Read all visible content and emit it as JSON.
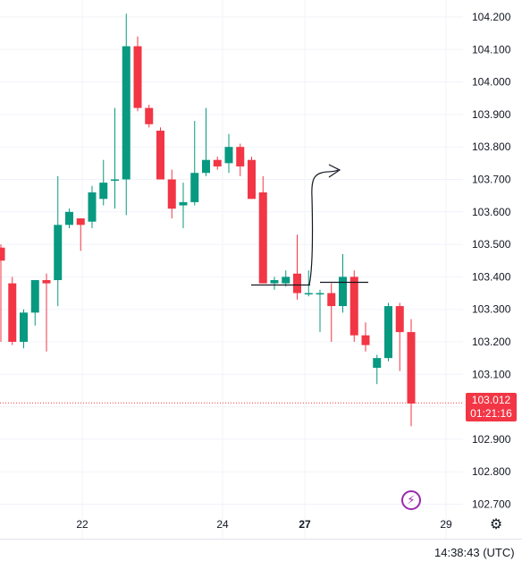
{
  "chart_data": {
    "type": "candlestick",
    "y_ticks": [
      "104.200",
      "104.100",
      "104.000",
      "103.900",
      "103.800",
      "103.700",
      "103.600",
      "103.500",
      "103.400",
      "103.300",
      "103.200",
      "103.100",
      "103.000",
      "102.900",
      "102.800",
      "102.700"
    ],
    "ylim": [
      102.68,
      104.24
    ],
    "x_ticks": [
      {
        "label": "22",
        "bold": false
      },
      {
        "label": "24",
        "bold": false
      },
      {
        "label": "27",
        "bold": true
      },
      {
        "label": "29",
        "bold": false
      }
    ],
    "grid": true,
    "candles": [
      {
        "o": 103.49,
        "h": 103.5,
        "l": 103.2,
        "c": 103.45
      },
      {
        "o": 103.38,
        "h": 103.4,
        "l": 103.19,
        "c": 103.2
      },
      {
        "o": 103.2,
        "h": 103.3,
        "l": 103.18,
        "c": 103.29
      },
      {
        "o": 103.29,
        "h": 103.39,
        "l": 103.25,
        "c": 103.39
      },
      {
        "o": 103.39,
        "h": 103.41,
        "l": 103.17,
        "c": 103.38
      },
      {
        "o": 103.39,
        "h": 103.71,
        "l": 103.31,
        "c": 103.56
      },
      {
        "o": 103.56,
        "h": 103.61,
        "l": 103.55,
        "c": 103.6
      },
      {
        "o": 103.58,
        "h": 103.58,
        "l": 103.48,
        "c": 103.56
      },
      {
        "o": 103.57,
        "h": 103.68,
        "l": 103.55,
        "c": 103.66
      },
      {
        "o": 103.64,
        "h": 103.76,
        "l": 103.62,
        "c": 103.69
      },
      {
        "o": 103.7,
        "h": 103.92,
        "l": 103.61,
        "c": 103.7
      },
      {
        "o": 103.7,
        "h": 104.21,
        "l": 103.59,
        "c": 104.11
      },
      {
        "o": 104.11,
        "h": 104.14,
        "l": 103.91,
        "c": 103.92
      },
      {
        "o": 103.92,
        "h": 103.93,
        "l": 103.86,
        "c": 103.87
      },
      {
        "o": 103.85,
        "h": 103.86,
        "l": 103.71,
        "c": 103.7
      },
      {
        "o": 103.7,
        "h": 103.73,
        "l": 103.58,
        "c": 103.61
      },
      {
        "o": 103.62,
        "h": 103.69,
        "l": 103.55,
        "c": 103.63
      },
      {
        "o": 103.63,
        "h": 103.88,
        "l": 103.62,
        "c": 103.72
      },
      {
        "o": 103.72,
        "h": 103.92,
        "l": 103.71,
        "c": 103.76
      },
      {
        "o": 103.76,
        "h": 103.77,
        "l": 103.73,
        "c": 103.74
      },
      {
        "o": 103.75,
        "h": 103.84,
        "l": 103.72,
        "c": 103.8
      },
      {
        "o": 103.8,
        "h": 103.81,
        "l": 103.71,
        "c": 103.74
      },
      {
        "o": 103.76,
        "h": 103.77,
        "l": 103.64,
        "c": 103.64
      },
      {
        "o": 103.66,
        "h": 103.71,
        "l": 103.38,
        "c": 103.38
      },
      {
        "o": 103.38,
        "h": 103.4,
        "l": 103.36,
        "c": 103.39
      },
      {
        "o": 103.38,
        "h": 103.42,
        "l": 103.37,
        "c": 103.4
      },
      {
        "o": 103.41,
        "h": 103.53,
        "l": 103.33,
        "c": 103.35
      },
      {
        "o": 103.35,
        "h": 103.42,
        "l": 103.34,
        "c": 103.35
      },
      {
        "o": 103.35,
        "h": 103.36,
        "l": 103.23,
        "c": 103.35
      },
      {
        "o": 103.35,
        "h": 103.38,
        "l": 103.2,
        "c": 103.31
      },
      {
        "o": 103.31,
        "h": 103.47,
        "l": 103.29,
        "c": 103.4
      },
      {
        "o": 103.4,
        "h": 103.42,
        "l": 103.2,
        "c": 103.22
      },
      {
        "o": 103.22,
        "h": 103.26,
        "l": 103.17,
        "c": 103.19
      },
      {
        "o": 103.12,
        "h": 103.16,
        "l": 103.07,
        "c": 103.15
      },
      {
        "o": 103.15,
        "h": 103.32,
        "l": 103.14,
        "c": 103.31
      },
      {
        "o": 103.31,
        "h": 103.32,
        "l": 103.11,
        "c": 103.23
      },
      {
        "o": 103.23,
        "h": 103.27,
        "l": 102.94,
        "c": 103.01
      }
    ],
    "current_price": "103.012",
    "countdown": "01:21:16",
    "current_value": 103.012,
    "colors": {
      "up": "#089981",
      "down": "#f23645",
      "grid": "#f0f3fa",
      "text": "#131722",
      "accent": "#9c27b0"
    }
  },
  "ui": {
    "clock": "14:38:43 (UTC)",
    "bolt_icon": "lightning-icon",
    "gear_icon": "settings-icon"
  }
}
